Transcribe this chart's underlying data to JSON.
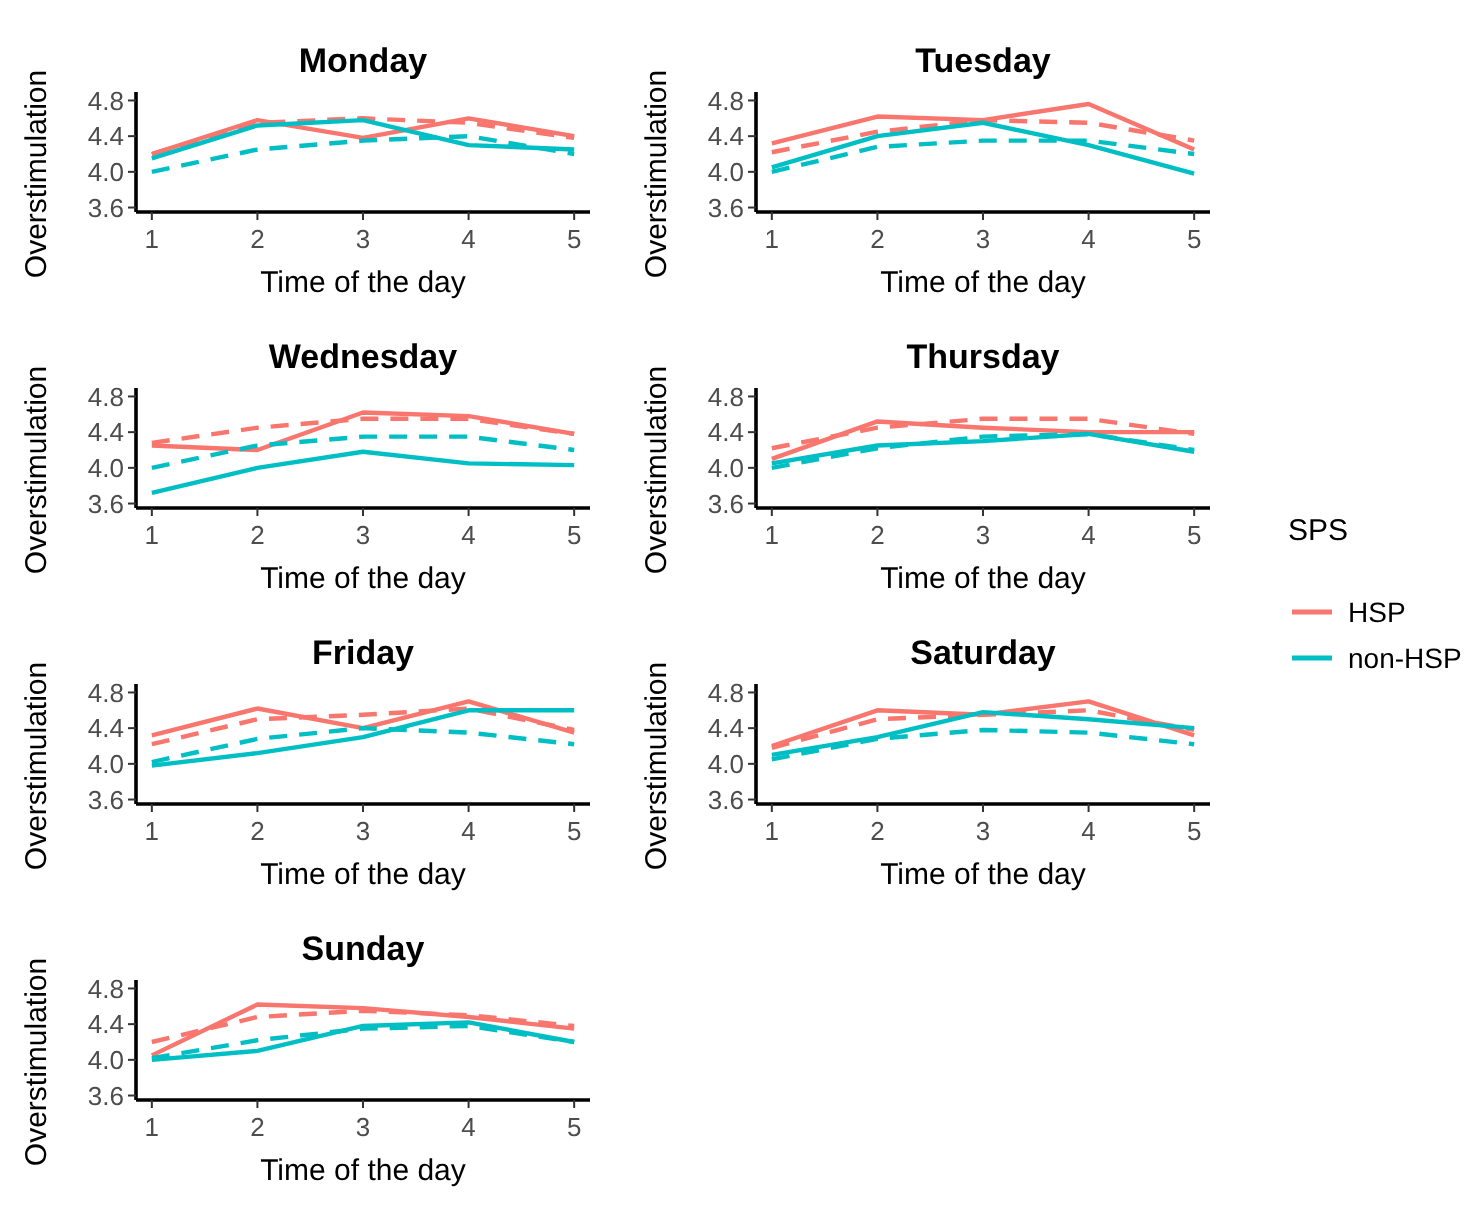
{
  "chart_data": [
    {
      "type": "line",
      "title": "Monday",
      "xlabel": "Time of the day",
      "ylabel": "Overstimulation",
      "x": [
        1,
        2,
        3,
        4,
        5
      ],
      "xlim": [
        0.85,
        5.15
      ],
      "xticks": [
        1,
        2,
        3,
        4,
        5
      ],
      "ylim": [
        3.55,
        4.85
      ],
      "yticks": [
        {
          "value": 3.6,
          "label": "3.6"
        },
        {
          "value": 4,
          "label": "4.0"
        },
        {
          "value": 4.4,
          "label": "4.4"
        },
        {
          "value": 4.8,
          "label": "4.8"
        }
      ],
      "legend": "right",
      "legend_title": "SPS",
      "series": [
        {
          "name": "HSP",
          "color": "#f8766d",
          "line_style": "solid",
          "values": [
            4.2,
            4.58,
            4.38,
            4.6,
            4.4
          ]
        },
        {
          "color": "#f8766d",
          "line_style": "dashed",
          "values": [
            4.2,
            4.55,
            4.6,
            4.55,
            4.38
          ]
        },
        {
          "name": "non-HSP",
          "color": "#00bfc4",
          "line_style": "solid",
          "values": [
            4.15,
            4.52,
            4.58,
            4.3,
            4.25
          ]
        },
        {
          "color": "#00bfc4",
          "line_style": "dashed",
          "values": [
            4.0,
            4.25,
            4.35,
            4.4,
            4.2
          ]
        }
      ]
    },
    {
      "type": "line",
      "title": "Tuesday",
      "xlabel": "Time of the day",
      "ylabel": "Overstimulation",
      "x": [
        1,
        2,
        3,
        4,
        5
      ],
      "xlim": [
        0.85,
        5.15
      ],
      "xticks": [
        1,
        2,
        3,
        4,
        5
      ],
      "ylim": [
        3.55,
        4.85
      ],
      "yticks": [
        {
          "value": 3.6,
          "label": "3.6"
        },
        {
          "value": 4,
          "label": "4.0"
        },
        {
          "value": 4.4,
          "label": "4.4"
        },
        {
          "value": 4.8,
          "label": "4.8"
        }
      ],
      "series": [
        {
          "color": "#f8766d",
          "line_style": "solid",
          "values": [
            4.32,
            4.62,
            4.58,
            4.76,
            4.25
          ]
        },
        {
          "color": "#f8766d",
          "line_style": "dashed",
          "values": [
            4.22,
            4.45,
            4.58,
            4.55,
            4.35
          ]
        },
        {
          "color": "#00bfc4",
          "line_style": "solid",
          "values": [
            4.05,
            4.4,
            4.55,
            4.3,
            3.98
          ]
        },
        {
          "color": "#00bfc4",
          "line_style": "dashed",
          "values": [
            4.0,
            4.28,
            4.35,
            4.35,
            4.2
          ]
        }
      ]
    },
    {
      "type": "line",
      "title": "Wednesday",
      "xlabel": "Time of the day",
      "ylabel": "Overstimulation",
      "x": [
        1,
        2,
        3,
        4,
        5
      ],
      "xlim": [
        0.85,
        5.15
      ],
      "xticks": [
        1,
        2,
        3,
        4,
        5
      ],
      "ylim": [
        3.55,
        4.85
      ],
      "yticks": [
        {
          "value": 3.6,
          "label": "3.6"
        },
        {
          "value": 4,
          "label": "4.0"
        },
        {
          "value": 4.4,
          "label": "4.4"
        },
        {
          "value": 4.8,
          "label": "4.8"
        }
      ],
      "series": [
        {
          "color": "#f8766d",
          "line_style": "solid",
          "values": [
            4.25,
            4.2,
            4.62,
            4.58,
            4.38
          ]
        },
        {
          "color": "#f8766d",
          "line_style": "dashed",
          "values": [
            4.28,
            4.45,
            4.55,
            4.55,
            4.38
          ]
        },
        {
          "color": "#00bfc4",
          "line_style": "solid",
          "values": [
            3.72,
            4.0,
            4.18,
            4.05,
            4.03
          ]
        },
        {
          "color": "#00bfc4",
          "line_style": "dashed",
          "values": [
            4.0,
            4.25,
            4.35,
            4.35,
            4.2
          ]
        }
      ]
    },
    {
      "type": "line",
      "title": "Thursday",
      "xlabel": "Time of the day",
      "ylabel": "Overstimulation",
      "x": [
        1,
        2,
        3,
        4,
        5
      ],
      "xlim": [
        0.85,
        5.15
      ],
      "xticks": [
        1,
        2,
        3,
        4,
        5
      ],
      "ylim": [
        3.55,
        4.85
      ],
      "yticks": [
        {
          "value": 3.6,
          "label": "3.6"
        },
        {
          "value": 4,
          "label": "4.0"
        },
        {
          "value": 4.4,
          "label": "4.4"
        },
        {
          "value": 4.8,
          "label": "4.8"
        }
      ],
      "series": [
        {
          "color": "#f8766d",
          "line_style": "solid",
          "values": [
            4.1,
            4.52,
            4.45,
            4.4,
            4.4
          ]
        },
        {
          "color": "#f8766d",
          "line_style": "dashed",
          "values": [
            4.22,
            4.45,
            4.55,
            4.55,
            4.38
          ]
        },
        {
          "color": "#00bfc4",
          "line_style": "solid",
          "values": [
            4.05,
            4.25,
            4.3,
            4.38,
            4.18
          ]
        },
        {
          "color": "#00bfc4",
          "line_style": "dashed",
          "values": [
            4.0,
            4.22,
            4.35,
            4.38,
            4.2
          ]
        }
      ]
    },
    {
      "type": "line",
      "title": "Friday",
      "xlabel": "Time of the day",
      "ylabel": "Overstimulation",
      "x": [
        1,
        2,
        3,
        4,
        5
      ],
      "xlim": [
        0.85,
        5.15
      ],
      "xticks": [
        1,
        2,
        3,
        4,
        5
      ],
      "ylim": [
        3.55,
        4.85
      ],
      "yticks": [
        {
          "value": 3.6,
          "label": "3.6"
        },
        {
          "value": 4,
          "label": "4.0"
        },
        {
          "value": 4.4,
          "label": "4.4"
        },
        {
          "value": 4.8,
          "label": "4.8"
        }
      ],
      "series": [
        {
          "color": "#f8766d",
          "line_style": "solid",
          "values": [
            4.32,
            4.62,
            4.4,
            4.7,
            4.35
          ]
        },
        {
          "color": "#f8766d",
          "line_style": "dashed",
          "values": [
            4.22,
            4.5,
            4.55,
            4.62,
            4.38
          ]
        },
        {
          "color": "#00bfc4",
          "line_style": "solid",
          "values": [
            3.98,
            4.12,
            4.3,
            4.6,
            4.6
          ]
        },
        {
          "color": "#00bfc4",
          "line_style": "dashed",
          "values": [
            4.02,
            4.28,
            4.4,
            4.35,
            4.22
          ]
        }
      ]
    },
    {
      "type": "line",
      "title": "Saturday",
      "xlabel": "Time of the day",
      "ylabel": "Overstimulation",
      "x": [
        1,
        2,
        3,
        4,
        5
      ],
      "xlim": [
        0.85,
        5.15
      ],
      "xticks": [
        1,
        2,
        3,
        4,
        5
      ],
      "ylim": [
        3.55,
        4.85
      ],
      "yticks": [
        {
          "value": 3.6,
          "label": "3.6"
        },
        {
          "value": 4,
          "label": "4.0"
        },
        {
          "value": 4.4,
          "label": "4.4"
        },
        {
          "value": 4.8,
          "label": "4.8"
        }
      ],
      "series": [
        {
          "color": "#f8766d",
          "line_style": "solid",
          "values": [
            4.2,
            4.6,
            4.55,
            4.7,
            4.32
          ]
        },
        {
          "color": "#f8766d",
          "line_style": "dashed",
          "values": [
            4.18,
            4.5,
            4.55,
            4.6,
            4.38
          ]
        },
        {
          "color": "#00bfc4",
          "line_style": "solid",
          "values": [
            4.1,
            4.3,
            4.58,
            4.5,
            4.4
          ]
        },
        {
          "color": "#00bfc4",
          "line_style": "dashed",
          "values": [
            4.05,
            4.28,
            4.38,
            4.35,
            4.22
          ]
        }
      ]
    },
    {
      "type": "line",
      "title": "Sunday",
      "xlabel": "Time of the day",
      "ylabel": "Overstimulation",
      "x": [
        1,
        2,
        3,
        4,
        5
      ],
      "xlim": [
        0.85,
        5.15
      ],
      "xticks": [
        1,
        2,
        3,
        4,
        5
      ],
      "ylim": [
        3.55,
        4.85
      ],
      "yticks": [
        {
          "value": 3.6,
          "label": "3.6"
        },
        {
          "value": 4,
          "label": "4.0"
        },
        {
          "value": 4.4,
          "label": "4.4"
        },
        {
          "value": 4.8,
          "label": "4.8"
        }
      ],
      "series": [
        {
          "color": "#f8766d",
          "line_style": "solid",
          "values": [
            4.05,
            4.62,
            4.58,
            4.48,
            4.35
          ]
        },
        {
          "color": "#f8766d",
          "line_style": "dashed",
          "values": [
            4.2,
            4.48,
            4.55,
            4.5,
            4.38
          ]
        },
        {
          "color": "#00bfc4",
          "line_style": "solid",
          "values": [
            4.0,
            4.1,
            4.38,
            4.42,
            4.2
          ]
        },
        {
          "color": "#00bfc4",
          "line_style": "dashed",
          "values": [
            4.02,
            4.22,
            4.35,
            4.38,
            4.2
          ]
        }
      ]
    }
  ]
}
